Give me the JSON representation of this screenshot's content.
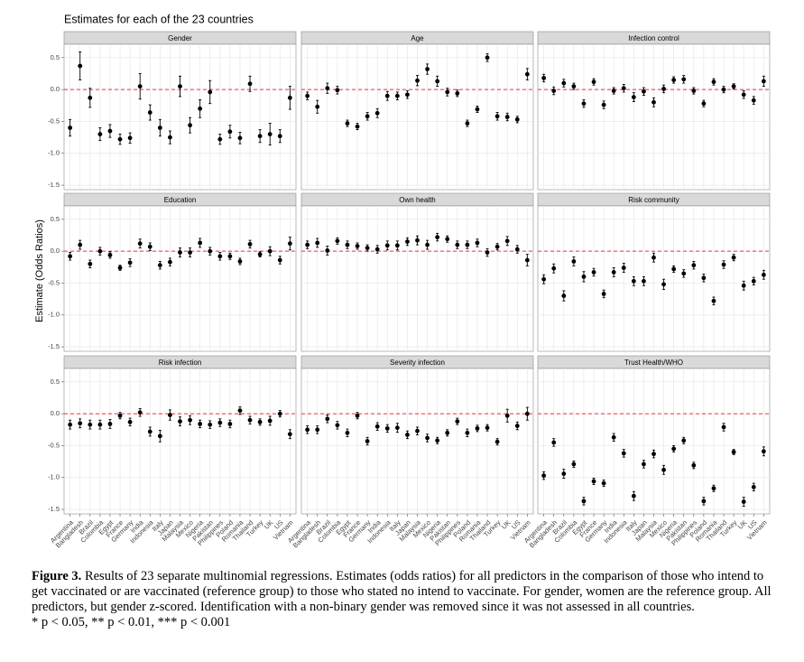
{
  "chart_data": {
    "type": "errorbar",
    "title": "Estimates for each of the 23 countries",
    "y_label": "Estimate (Odds Ratios)",
    "categories": [
      "Argentina",
      "Bangladesh",
      "Brazil",
      "Colombia",
      "Egypt",
      "France",
      "Germany",
      "India",
      "Indonesia",
      "Italy",
      "Japan",
      "Malaysia",
      "Mexico",
      "Nigeria",
      "Pakistan",
      "Philippines",
      "Poland",
      "Romania",
      "Thailand",
      "Turkey",
      "UK",
      "US",
      "Vietnam"
    ],
    "ylim": [
      -1.57,
      0.71
    ],
    "yticks": [
      0.5,
      {
        "value": 0,
        "label": "0.0"
      },
      -0.5,
      {
        "value": -1,
        "label": "-1.0"
      },
      -1.5
    ],
    "grid": true,
    "color": "#000000",
    "reference_line": 0,
    "reference_color": "#e8333f",
    "facets": [
      {
        "title": "Gender",
        "values": [
          -0.6,
          0.37,
          -0.13,
          -0.7,
          -0.65,
          -0.78,
          -0.76,
          0.05,
          -0.36,
          -0.6,
          -0.75,
          0.05,
          -0.56,
          -0.3,
          -0.04,
          -0.78,
          -0.66,
          -0.76,
          0.09,
          -0.73,
          -0.7,
          -0.73,
          -0.13
        ],
        "errors": [
          0.13,
          0.22,
          0.15,
          0.1,
          0.1,
          0.08,
          0.08,
          0.2,
          0.12,
          0.13,
          0.1,
          0.16,
          0.12,
          0.14,
          0.18,
          0.08,
          0.1,
          0.09,
          0.12,
          0.1,
          0.17,
          0.1,
          0.18
        ]
      },
      {
        "title": "Age",
        "values": [
          -0.1,
          -0.27,
          0.02,
          -0.01,
          -0.53,
          -0.58,
          -0.42,
          -0.37,
          -0.1,
          -0.1,
          -0.08,
          0.14,
          0.32,
          0.13,
          -0.04,
          -0.06,
          -0.53,
          -0.31,
          0.5,
          -0.42,
          -0.43,
          -0.47,
          0.24
        ],
        "errors": [
          0.06,
          0.1,
          0.08,
          0.06,
          0.05,
          0.05,
          0.06,
          0.07,
          0.07,
          0.06,
          0.06,
          0.08,
          0.08,
          0.08,
          0.06,
          0.05,
          0.05,
          0.05,
          0.06,
          0.06,
          0.06,
          0.05,
          0.09
        ]
      },
      {
        "title": "Infection control",
        "values": [
          0.18,
          -0.02,
          0.1,
          0.05,
          -0.22,
          0.12,
          -0.24,
          -0.02,
          0.02,
          -0.12,
          -0.03,
          -0.2,
          0.01,
          0.15,
          0.16,
          -0.02,
          -0.22,
          0.12,
          0,
          0.05,
          -0.08,
          -0.17,
          0.13
        ],
        "errors": [
          0.06,
          0.06,
          0.06,
          0.05,
          0.06,
          0.05,
          0.06,
          0.05,
          0.06,
          0.07,
          0.06,
          0.07,
          0.06,
          0.05,
          0.06,
          0.05,
          0.05,
          0.05,
          0.05,
          0.04,
          0.06,
          0.06,
          0.08
        ]
      },
      {
        "title": "Education",
        "values": [
          -0.08,
          0.1,
          -0.2,
          0,
          -0.06,
          -0.26,
          -0.18,
          0.12,
          0.07,
          -0.22,
          -0.17,
          -0.02,
          -0.02,
          0.13,
          0,
          -0.08,
          -0.08,
          -0.16,
          0.11,
          -0.05,
          0,
          -0.14,
          0.12
        ],
        "errors": [
          0.06,
          0.07,
          0.06,
          0.06,
          0.05,
          0.04,
          0.06,
          0.07,
          0.06,
          0.06,
          0.06,
          0.07,
          0.07,
          0.07,
          0.06,
          0.06,
          0.05,
          0.05,
          0.06,
          0.04,
          0.07,
          0.06,
          0.1
        ]
      },
      {
        "title": "Own health",
        "values": [
          0.1,
          0.13,
          0.01,
          0.16,
          0.1,
          0.08,
          0.05,
          0.03,
          0.09,
          0.09,
          0.15,
          0.17,
          0.1,
          0.22,
          0.19,
          0.1,
          0.1,
          0.13,
          -0.02,
          0.07,
          0.16,
          0.03,
          -0.14
        ],
        "errors": [
          0.06,
          0.07,
          0.07,
          0.05,
          0.06,
          0.05,
          0.05,
          0.06,
          0.07,
          0.07,
          0.06,
          0.07,
          0.07,
          0.06,
          0.05,
          0.06,
          0.06,
          0.06,
          0.06,
          0.05,
          0.07,
          0.06,
          0.09
        ]
      },
      {
        "title": "Risk community",
        "values": [
          -0.44,
          -0.27,
          -0.7,
          -0.16,
          -0.4,
          -0.33,
          -0.67,
          -0.33,
          -0.26,
          -0.47,
          -0.47,
          -0.1,
          -0.52,
          -0.28,
          -0.35,
          -0.22,
          -0.42,
          -0.78,
          -0.21,
          -0.1,
          -0.54,
          -0.47,
          -0.37
        ],
        "errors": [
          0.07,
          0.07,
          0.08,
          0.07,
          0.08,
          0.06,
          0.06,
          0.07,
          0.07,
          0.07,
          0.07,
          0.07,
          0.08,
          0.05,
          0.06,
          0.06,
          0.06,
          0.06,
          0.06,
          0.05,
          0.07,
          0.06,
          0.07
        ]
      },
      {
        "title": "Risk infection",
        "values": [
          -0.17,
          -0.15,
          -0.17,
          -0.17,
          -0.16,
          -0.03,
          -0.13,
          0.02,
          -0.28,
          -0.35,
          -0.02,
          -0.12,
          -0.1,
          -0.16,
          -0.17,
          -0.14,
          -0.16,
          0.05,
          -0.1,
          -0.13,
          -0.11,
          0,
          -0.32
        ],
        "errors": [
          0.07,
          0.07,
          0.07,
          0.07,
          0.07,
          0.05,
          0.06,
          0.06,
          0.07,
          0.09,
          0.08,
          0.07,
          0.07,
          0.06,
          0.06,
          0.06,
          0.06,
          0.06,
          0.06,
          0.05,
          0.07,
          0.05,
          0.07
        ]
      },
      {
        "title": "Severity infection",
        "values": [
          -0.25,
          -0.25,
          -0.08,
          -0.18,
          -0.3,
          -0.03,
          -0.43,
          -0.2,
          -0.23,
          -0.22,
          -0.33,
          -0.27,
          -0.38,
          -0.42,
          -0.3,
          -0.12,
          -0.3,
          -0.23,
          -0.22,
          -0.44,
          -0.03,
          -0.19,
          0
        ],
        "errors": [
          0.06,
          0.06,
          0.06,
          0.06,
          0.06,
          0.05,
          0.06,
          0.06,
          0.06,
          0.07,
          0.06,
          0.06,
          0.06,
          0.05,
          0.05,
          0.05,
          0.06,
          0.05,
          0.05,
          0.05,
          0.1,
          0.06,
          0.1
        ]
      },
      {
        "title": "Trust Health/WHO",
        "values": [
          -0.97,
          -0.45,
          -0.94,
          -0.79,
          -1.37,
          -1.06,
          -1.09,
          -0.37,
          -0.62,
          -1.29,
          -0.79,
          -0.63,
          -0.88,
          -0.55,
          -0.42,
          -0.81,
          -1.37,
          -1.17,
          -0.21,
          -0.6,
          -1.38,
          -1.15,
          -0.59
        ],
        "errors": [
          0.06,
          0.06,
          0.07,
          0.05,
          0.06,
          0.05,
          0.05,
          0.06,
          0.06,
          0.07,
          0.06,
          0.06,
          0.07,
          0.05,
          0.05,
          0.05,
          0.06,
          0.05,
          0.06,
          0.04,
          0.07,
          0.06,
          0.07
        ]
      }
    ]
  },
  "caption": {
    "label": "Figure 3.",
    "text": "Results of 23 separate multinomial regressions. Estimates (odds ratios) for all predictors in the comparison of those who intend to get vaccinated or are vaccinated (reference group) to those who stated no intend to vaccinate. For gender, women are the reference group. All predictors, but gender z-scored. Identification with a non-binary gender was removed since it was not assessed in all countries.",
    "significance": "* p < 0.05, ** p < 0.01, *** p < 0.001"
  }
}
